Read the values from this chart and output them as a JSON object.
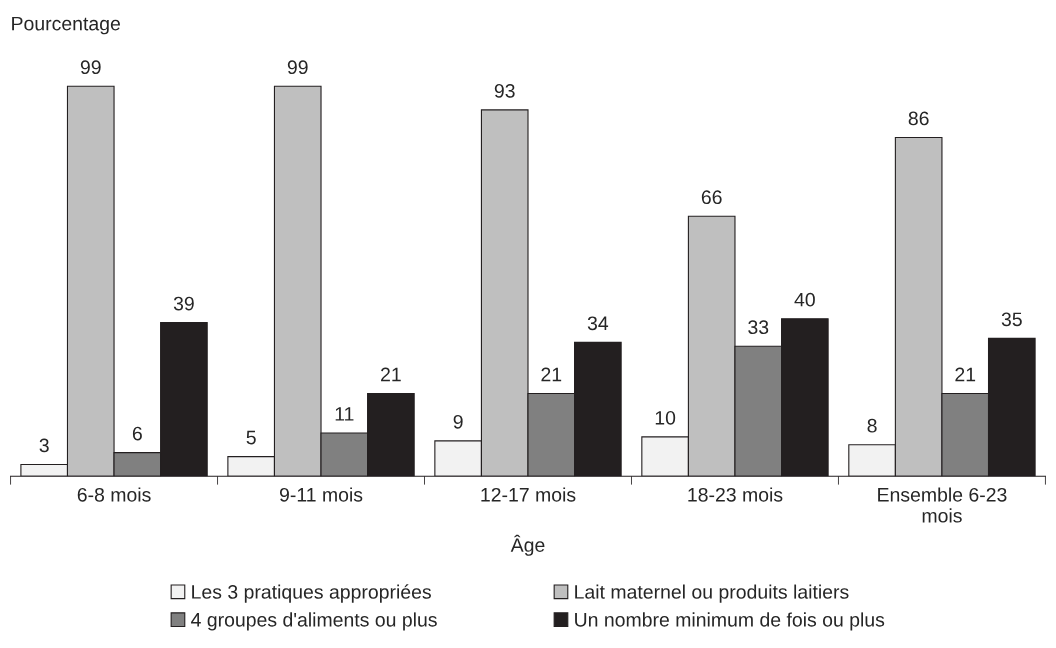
{
  "chart_data": {
    "type": "bar",
    "ylabel": "Pourcentage",
    "xlabel": "Âge",
    "categories": [
      "6-8 mois",
      "9-11 mois",
      "12-17 mois",
      "18-23 mois",
      "Ensemble 6-23 mois"
    ],
    "series": [
      {
        "name": "Les 3 pratiques appropriées",
        "color": "#f2f2f2",
        "values": [
          3,
          5,
          9,
          10,
          8
        ]
      },
      {
        "name": "Lait maternel ou produits laitiers",
        "color": "#bfbfbf",
        "values": [
          99,
          99,
          93,
          66,
          86
        ]
      },
      {
        "name": "4 groupes d'aliments ou plus",
        "color": "#808080",
        "values": [
          6,
          11,
          21,
          33,
          21
        ]
      },
      {
        "name": "Un nombre minimum de fois ou plus",
        "color": "#231f20",
        "values": [
          39,
          21,
          34,
          40,
          35
        ]
      }
    ],
    "data_labels": true,
    "grid": false,
    "legend": "bottom"
  }
}
